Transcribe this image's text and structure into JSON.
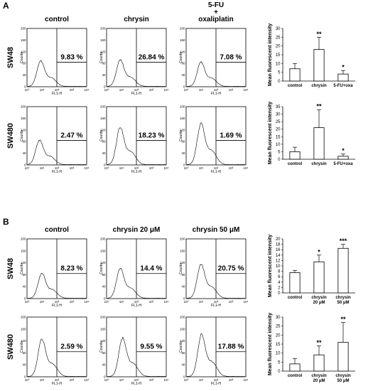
{
  "chart_data": [
    {
      "panel": "A",
      "type": "bar",
      "column_headers": [
        "control",
        "chrysin",
        "5-FU",
        "+",
        "oxaliplatin"
      ],
      "rows": [
        {
          "row_label": "SW48",
          "histograms": [
            {
              "percent": "9.83 %"
            },
            {
              "percent": "26.84 %"
            },
            {
              "percent": "7.08 %"
            }
          ],
          "bar": {
            "categories": [
              "control",
              "chrysin",
              "5-FU+oxa"
            ],
            "values": [
              7,
              18,
              4
            ],
            "errors": [
              3,
              7,
              2
            ],
            "significance": [
              "",
              "**",
              "*"
            ],
            "ylabel": "Mean fluorescent intensity",
            "ylim": [
              0,
              30
            ],
            "yticks": [
              0,
              5,
              10,
              15,
              20,
              25,
              30
            ]
          }
        },
        {
          "row_label": "SW480",
          "histograms": [
            {
              "percent": "2.47 %"
            },
            {
              "percent": "18.23 %"
            },
            {
              "percent": "1.69 %"
            }
          ],
          "bar": {
            "categories": [
              "control",
              "chrysin",
              "5-FU+oxa"
            ],
            "values": [
              5,
              21,
              2
            ],
            "errors": [
              3,
              12,
              1.5
            ],
            "significance": [
              "",
              "**",
              "*"
            ],
            "ylabel": "Mean fluorescent intensity",
            "ylim": [
              0,
              35
            ],
            "yticks": [
              0,
              5,
              10,
              15,
              20,
              25,
              30,
              35
            ]
          }
        }
      ]
    },
    {
      "panel": "B",
      "type": "bar",
      "column_headers": [
        "control",
        "chrysin 20 μM",
        "chrysin 50 μM"
      ],
      "rows": [
        {
          "row_label": "SW48",
          "histograms": [
            {
              "percent": "8.23 %"
            },
            {
              "percent": "14.4 %"
            },
            {
              "percent": "20.75 %"
            }
          ],
          "bar": {
            "categories": [
              [
                "control"
              ],
              [
                "chrysin",
                "20 μM"
              ],
              [
                "chrysin",
                "50 μM"
              ]
            ],
            "values": [
              7.5,
              11.5,
              16.5
            ],
            "errors": [
              0.8,
              2.5,
              1.5
            ],
            "significance": [
              "",
              "*",
              "***"
            ],
            "ylabel": "Mean fluorescent intensity",
            "ylim": [
              0,
              20
            ],
            "yticks": [
              0,
              2,
              4,
              6,
              8,
              10,
              12,
              14,
              16,
              18,
              20
            ]
          }
        },
        {
          "row_label": "SW480",
          "histograms": [
            {
              "percent": "2.59 %"
            },
            {
              "percent": "9.55 %"
            },
            {
              "percent": "17.88 %"
            }
          ],
          "bar": {
            "categories": [
              [
                "control"
              ],
              [
                "chrysin",
                "20 μM"
              ],
              [
                "chrysin",
                "50 μM"
              ]
            ],
            "values": [
              4,
              9,
              16
            ],
            "errors": [
              3,
              5,
              11
            ],
            "significance": [
              "",
              "**",
              "**"
            ],
            "ylabel": "Mean fluorescent intensity",
            "ylim": [
              0,
              30
            ],
            "yticks": [
              0,
              5,
              10,
              15,
              20,
              25,
              30
            ]
          }
        }
      ]
    }
  ],
  "histogram_axes": {
    "x_tick_labels": [
      "10⁰",
      "10¹",
      "10²",
      "10³",
      "10⁴"
    ],
    "y_tick_labels": [
      "0",
      "40",
      "80",
      "120",
      "160",
      "200"
    ],
    "xlabel": "FL1-H",
    "ylabel": "Counts"
  }
}
